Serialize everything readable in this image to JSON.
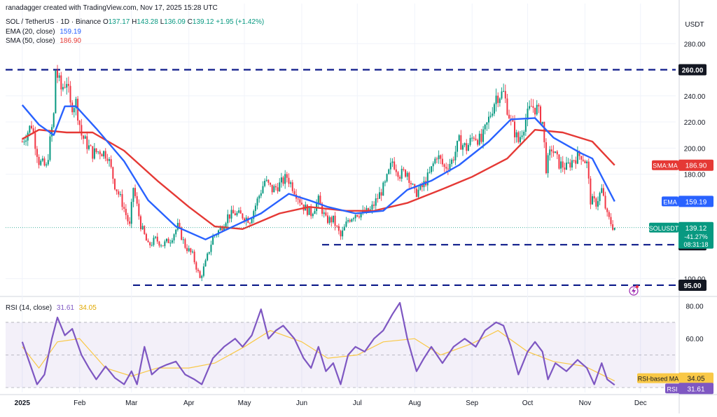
{
  "header": {
    "credit": "ranadagger created with TradingView.com, Nov 17, 2025 15:28 UTC",
    "symbol": "SOL / TetherUS · 1D · Binance",
    "ohlc": {
      "o_label": "O",
      "o": "137.17",
      "h_label": "H",
      "h": "143.28",
      "l_label": "L",
      "l": "136.09",
      "c_label": "C",
      "c": "139.12",
      "change": "+1.95 (+1.42%)"
    },
    "ema_label": "EMA (20, close)",
    "ema_value": "159.19",
    "sma_label": "SMA (50, close)",
    "sma_value": "186.90",
    "rsi_label": "RSI (14, close)",
    "rsi_value": "31.61",
    "rsi_ma_value": "34.05"
  },
  "colors": {
    "up": "#089981",
    "down": "#f23645",
    "ema": "#2962ff",
    "sma": "#e53935",
    "rsi": "#7e57c2",
    "rsi_ma": "#f9c846",
    "level": "#0d1b8a"
  },
  "chart_data": [
    {
      "type": "line",
      "currency": "USDT",
      "x_ticks": [
        "2025",
        "Feb",
        "Mar",
        "Apr",
        "May",
        "Jun",
        "Jul",
        "Aug",
        "Sep",
        "Oct",
        "Nov",
        "Dec"
      ],
      "y_ticks": [
        "280.00",
        "240.00",
        "220.00",
        "200.00",
        "180.00",
        "100.00"
      ],
      "ylim": [
        88,
        300
      ],
      "price_path": [
        [
          "2025-01-01",
          205
        ],
        [
          "2025-01-06",
          218
        ],
        [
          "2025-01-10",
          190
        ],
        [
          "2025-01-14",
          185
        ],
        [
          "2025-01-18",
          225
        ],
        [
          "2025-01-19",
          260
        ],
        [
          "2025-01-22",
          245
        ],
        [
          "2025-01-25",
          252
        ],
        [
          "2025-01-27",
          232
        ],
        [
          "2025-01-30",
          235
        ],
        [
          "2025-02-02",
          210
        ],
        [
          "2025-02-04",
          205
        ],
        [
          "2025-02-08",
          196
        ],
        [
          "2025-02-12",
          198
        ],
        [
          "2025-02-16",
          195
        ],
        [
          "2025-02-20",
          172
        ],
        [
          "2025-02-24",
          158
        ],
        [
          "2025-02-28",
          140
        ],
        [
          "2025-03-02",
          170
        ],
        [
          "2025-03-06",
          141
        ],
        [
          "2025-03-10",
          125
        ],
        [
          "2025-03-14",
          130
        ],
        [
          "2025-03-18",
          126
        ],
        [
          "2025-03-22",
          130
        ],
        [
          "2025-03-26",
          140
        ],
        [
          "2025-03-30",
          125
        ],
        [
          "2025-04-03",
          118
        ],
        [
          "2025-04-07",
          100
        ],
        [
          "2025-04-10",
          112
        ],
        [
          "2025-04-14",
          132
        ],
        [
          "2025-04-18",
          138
        ],
        [
          "2025-04-22",
          148
        ],
        [
          "2025-04-26",
          150
        ],
        [
          "2025-04-30",
          148
        ],
        [
          "2025-05-04",
          145
        ],
        [
          "2025-05-08",
          160
        ],
        [
          "2025-05-12",
          175
        ],
        [
          "2025-05-16",
          168
        ],
        [
          "2025-05-20",
          172
        ],
        [
          "2025-05-24",
          178
        ],
        [
          "2025-05-28",
          168
        ],
        [
          "2025-06-02",
          155
        ],
        [
          "2025-06-06",
          150
        ],
        [
          "2025-06-10",
          160
        ],
        [
          "2025-06-14",
          145
        ],
        [
          "2025-06-18",
          145
        ],
        [
          "2025-06-22",
          132
        ],
        [
          "2025-06-26",
          145
        ],
        [
          "2025-06-30",
          150
        ],
        [
          "2025-07-04",
          150
        ],
        [
          "2025-07-08",
          152
        ],
        [
          "2025-07-12",
          162
        ],
        [
          "2025-07-16",
          172
        ],
        [
          "2025-07-20",
          190
        ],
        [
          "2025-07-24",
          180
        ],
        [
          "2025-07-28",
          182
        ],
        [
          "2025-08-01",
          165
        ],
        [
          "2025-08-05",
          170
        ],
        [
          "2025-08-09",
          180
        ],
        [
          "2025-08-13",
          195
        ],
        [
          "2025-08-17",
          185
        ],
        [
          "2025-08-21",
          190
        ],
        [
          "2025-08-25",
          205
        ],
        [
          "2025-08-29",
          200
        ],
        [
          "2025-09-02",
          210
        ],
        [
          "2025-09-06",
          205
        ],
        [
          "2025-09-10",
          222
        ],
        [
          "2025-09-14",
          240
        ],
        [
          "2025-09-18",
          242
        ],
        [
          "2025-09-22",
          220
        ],
        [
          "2025-09-26",
          205
        ],
        [
          "2025-09-30",
          222
        ],
        [
          "2025-10-03",
          232
        ],
        [
          "2025-10-06",
          230
        ],
        [
          "2025-10-09",
          220
        ],
        [
          "2025-10-11",
          185
        ],
        [
          "2025-10-14",
          200
        ],
        [
          "2025-10-18",
          188
        ],
        [
          "2025-10-22",
          185
        ],
        [
          "2025-10-26",
          192
        ],
        [
          "2025-10-30",
          195
        ],
        [
          "2025-11-02",
          188
        ],
        [
          "2025-11-04",
          160
        ],
        [
          "2025-11-07",
          158
        ],
        [
          "2025-11-10",
          168
        ],
        [
          "2025-11-13",
          148
        ],
        [
          "2025-11-16",
          140
        ],
        [
          "2025-11-17",
          139.12
        ]
      ],
      "ema_points": [
        [
          "2025-01-01",
          233
        ],
        [
          "2025-01-10",
          218
        ],
        [
          "2025-01-18",
          210
        ],
        [
          "2025-01-24",
          232
        ],
        [
          "2025-01-30",
          232
        ],
        [
          "2025-02-10",
          215
        ],
        [
          "2025-02-25",
          190
        ],
        [
          "2025-03-10",
          160
        ],
        [
          "2025-03-25",
          140
        ],
        [
          "2025-04-10",
          130
        ],
        [
          "2025-04-25",
          140
        ],
        [
          "2025-05-10",
          150
        ],
        [
          "2025-05-25",
          165
        ],
        [
          "2025-06-05",
          160
        ],
        [
          "2025-06-15",
          155
        ],
        [
          "2025-06-30",
          150
        ],
        [
          "2025-07-15",
          152
        ],
        [
          "2025-07-28",
          168
        ],
        [
          "2025-08-10",
          175
        ],
        [
          "2025-08-25",
          187
        ],
        [
          "2025-09-10",
          205
        ],
        [
          "2025-09-22",
          222
        ],
        [
          "2025-10-05",
          223
        ],
        [
          "2025-10-15",
          208
        ],
        [
          "2025-10-30",
          196
        ],
        [
          "2025-11-05",
          192
        ],
        [
          "2025-11-17",
          159.19
        ]
      ],
      "sma_points": [
        [
          "2025-01-01",
          207
        ],
        [
          "2025-01-10",
          214
        ],
        [
          "2025-01-25",
          212
        ],
        [
          "2025-02-08",
          212
        ],
        [
          "2025-02-25",
          198
        ],
        [
          "2025-03-15",
          175
        ],
        [
          "2025-04-01",
          155
        ],
        [
          "2025-04-15",
          140
        ],
        [
          "2025-04-30",
          138
        ],
        [
          "2025-05-20",
          150
        ],
        [
          "2025-06-05",
          155
        ],
        [
          "2025-06-25",
          152
        ],
        [
          "2025-07-10",
          152
        ],
        [
          "2025-07-28",
          158
        ],
        [
          "2025-08-15",
          168
        ],
        [
          "2025-09-01",
          178
        ],
        [
          "2025-09-20",
          192
        ],
        [
          "2025-10-05",
          214
        ],
        [
          "2025-10-20",
          212
        ],
        [
          "2025-11-05",
          205
        ],
        [
          "2025-11-17",
          186.9
        ]
      ],
      "levels": [
        {
          "label": "260.00",
          "value": 260
        },
        {
          "label": "126.00",
          "value": 126
        },
        {
          "label": "95.00",
          "value": 95
        }
      ],
      "markers": [
        {
          "label": "SMA:MA",
          "value": "186.90"
        },
        {
          "label": "EMA",
          "value": "159.19"
        },
        {
          "label": "SOLUSDT",
          "value": "139.12",
          "change": "-41.27%",
          "timer": "08:31:18"
        }
      ]
    },
    {
      "type": "line",
      "x_ticks": [
        "2025",
        "Feb",
        "Mar",
        "Apr",
        "May",
        "Jun",
        "Jul",
        "Aug",
        "Sep",
        "Oct",
        "Nov",
        "Dec"
      ],
      "y_ticks": [
        "80.00",
        "60.00"
      ],
      "ylim": [
        27,
        85
      ],
      "rsi_points": [
        [
          "2025-01-01",
          58
        ],
        [
          "2025-01-05",
          45
        ],
        [
          "2025-01-09",
          32
        ],
        [
          "2025-01-13",
          38
        ],
        [
          "2025-01-17",
          60
        ],
        [
          "2025-01-20",
          73
        ],
        [
          "2025-01-24",
          62
        ],
        [
          "2025-01-28",
          66
        ],
        [
          "2025-02-02",
          50
        ],
        [
          "2025-02-06",
          42
        ],
        [
          "2025-02-10",
          35
        ],
        [
          "2025-02-15",
          43
        ],
        [
          "2025-02-20",
          36
        ],
        [
          "2025-02-25",
          32
        ],
        [
          "2025-03-01",
          40
        ],
        [
          "2025-03-04",
          32
        ],
        [
          "2025-03-08",
          55
        ],
        [
          "2025-03-12",
          38
        ],
        [
          "2025-03-16",
          42
        ],
        [
          "2025-03-20",
          44
        ],
        [
          "2025-03-25",
          46
        ],
        [
          "2025-03-30",
          38
        ],
        [
          "2025-04-04",
          35
        ],
        [
          "2025-04-08",
          32
        ],
        [
          "2025-04-14",
          48
        ],
        [
          "2025-04-20",
          55
        ],
        [
          "2025-04-26",
          60
        ],
        [
          "2025-04-30",
          55
        ],
        [
          "2025-05-05",
          62
        ],
        [
          "2025-05-10",
          78
        ],
        [
          "2025-05-14",
          60
        ],
        [
          "2025-05-18",
          65
        ],
        [
          "2025-05-22",
          68
        ],
        [
          "2025-05-28",
          60
        ],
        [
          "2025-06-02",
          48
        ],
        [
          "2025-06-06",
          42
        ],
        [
          "2025-06-10",
          55
        ],
        [
          "2025-06-14",
          40
        ],
        [
          "2025-06-18",
          45
        ],
        [
          "2025-06-22",
          32
        ],
        [
          "2025-06-26",
          50
        ],
        [
          "2025-06-30",
          55
        ],
        [
          "2025-07-05",
          52
        ],
        [
          "2025-07-10",
          60
        ],
        [
          "2025-07-15",
          65
        ],
        [
          "2025-07-20",
          75
        ],
        [
          "2025-07-24",
          82
        ],
        [
          "2025-07-28",
          60
        ],
        [
          "2025-08-02",
          40
        ],
        [
          "2025-08-06",
          48
        ],
        [
          "2025-08-10",
          55
        ],
        [
          "2025-08-16",
          45
        ],
        [
          "2025-08-22",
          55
        ],
        [
          "2025-08-28",
          60
        ],
        [
          "2025-09-03",
          55
        ],
        [
          "2025-09-08",
          65
        ],
        [
          "2025-09-14",
          70
        ],
        [
          "2025-09-18",
          68
        ],
        [
          "2025-09-22",
          55
        ],
        [
          "2025-09-26",
          38
        ],
        [
          "2025-10-01",
          52
        ],
        [
          "2025-10-05",
          58
        ],
        [
          "2025-10-09",
          52
        ],
        [
          "2025-10-12",
          35
        ],
        [
          "2025-10-16",
          45
        ],
        [
          "2025-10-22",
          40
        ],
        [
          "2025-10-28",
          47
        ],
        [
          "2025-11-02",
          42
        ],
        [
          "2025-11-06",
          32
        ],
        [
          "2025-11-10",
          45
        ],
        [
          "2025-11-13",
          35
        ],
        [
          "2025-11-17",
          31.61
        ]
      ],
      "rsi_ma_points": [
        [
          "2025-01-01",
          55
        ],
        [
          "2025-01-10",
          42
        ],
        [
          "2025-01-20",
          58
        ],
        [
          "2025-02-01",
          60
        ],
        [
          "2025-02-15",
          42
        ],
        [
          "2025-03-01",
          37
        ],
        [
          "2025-03-15",
          42
        ],
        [
          "2025-04-01",
          42
        ],
        [
          "2025-04-15",
          45
        ],
        [
          "2025-05-01",
          55
        ],
        [
          "2025-05-15",
          65
        ],
        [
          "2025-06-01",
          58
        ],
        [
          "2025-06-15",
          48
        ],
        [
          "2025-07-01",
          50
        ],
        [
          "2025-07-15",
          58
        ],
        [
          "2025-08-01",
          60
        ],
        [
          "2025-08-15",
          50
        ],
        [
          "2025-09-01",
          57
        ],
        [
          "2025-09-15",
          65
        ],
        [
          "2025-10-01",
          52
        ],
        [
          "2025-10-15",
          46
        ],
        [
          "2025-11-01",
          43
        ],
        [
          "2025-11-17",
          34.05
        ]
      ],
      "markers": [
        {
          "label": "RSI-based MA",
          "value": "34.05"
        },
        {
          "label": "RSI",
          "value": "31.61"
        }
      ]
    }
  ]
}
